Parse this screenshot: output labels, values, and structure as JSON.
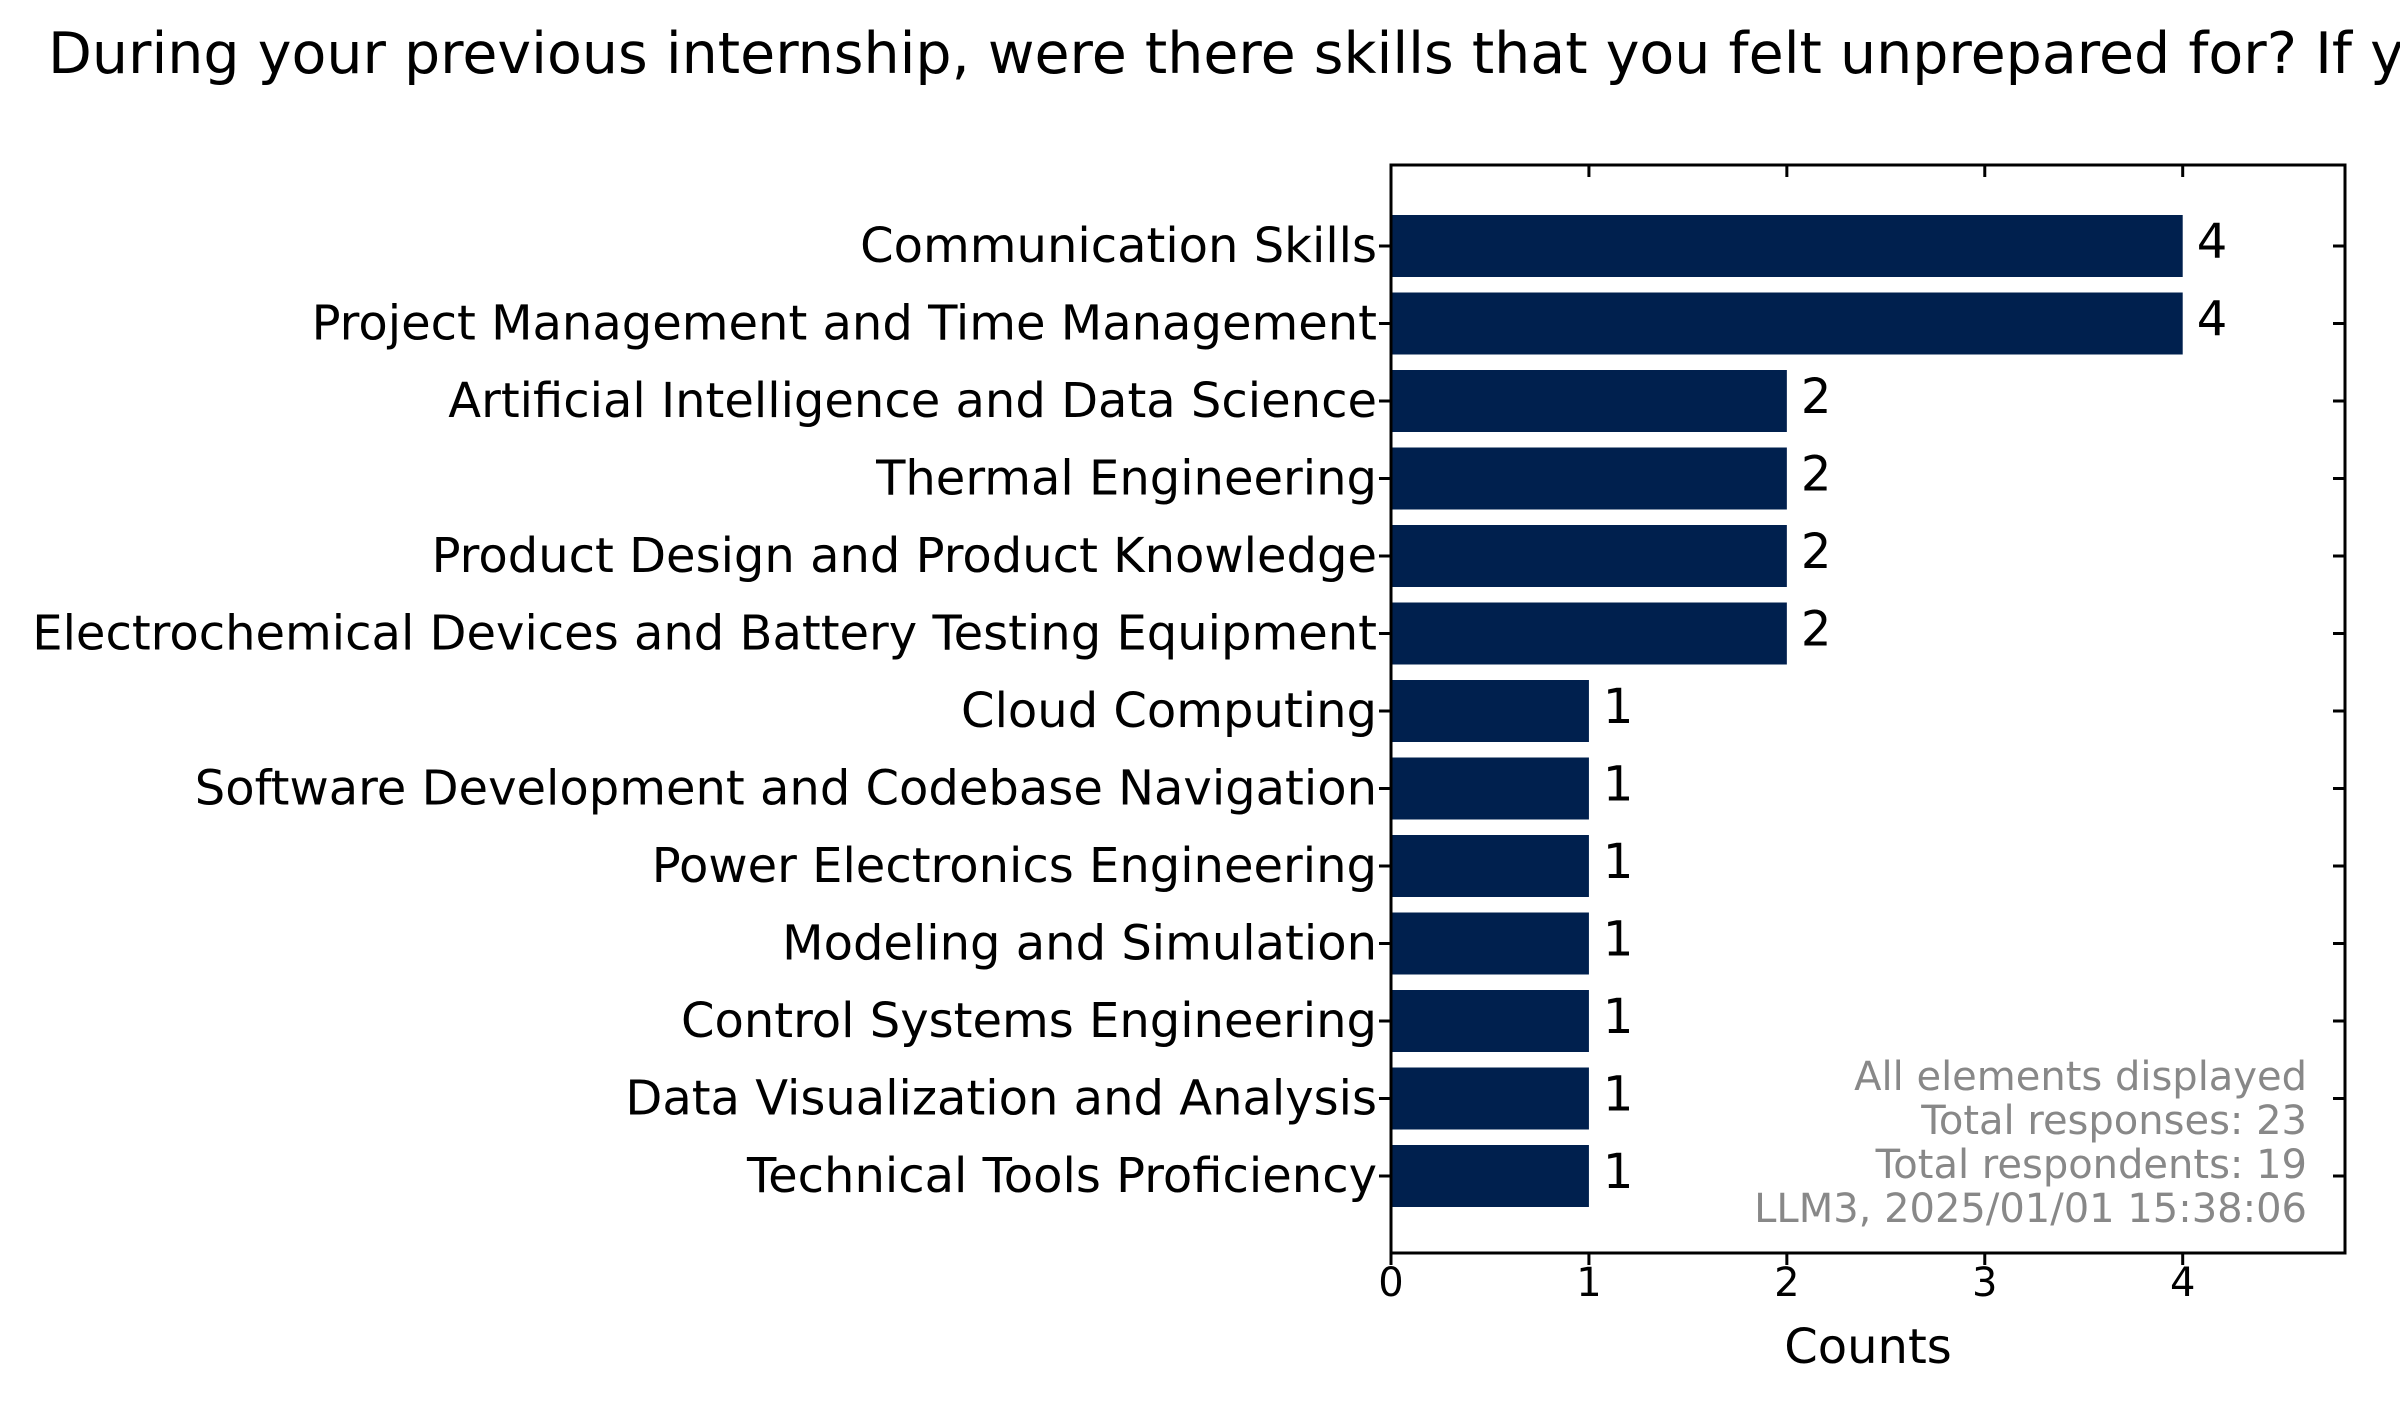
{
  "chart_data": {
    "type": "bar",
    "orientation": "horizontal",
    "title": "During your previous internship, were there skills that you felt unprepared for? If ye",
    "categories": [
      "Communication Skills",
      "Project Management and Time Management",
      "Artificial Intelligence and Data Science",
      "Thermal Engineering",
      "Product Design and Product Knowledge",
      "Electrochemical Devices and Battery Testing Equipment",
      "Cloud Computing",
      "Software Development and Codebase Navigation",
      "Power Electronics Engineering",
      "Modeling and Simulation",
      "Control Systems Engineering",
      "Data Visualization and Analysis",
      "Technical Tools Proficiency"
    ],
    "values": [
      4,
      4,
      2,
      2,
      2,
      2,
      1,
      1,
      1,
      1,
      1,
      1,
      1
    ],
    "xlabel": "Counts",
    "ylabel": "",
    "xlim": [
      0,
      4.82
    ],
    "xticks": [
      "0",
      "1",
      "2",
      "3",
      "4"
    ],
    "grid": false,
    "bar_color": "#00204e",
    "annotation": [
      "All elements displayed",
      "Total responses: 23",
      "Total respondents: 19",
      "LLM3, 2025/01/01 15:38:06"
    ]
  }
}
